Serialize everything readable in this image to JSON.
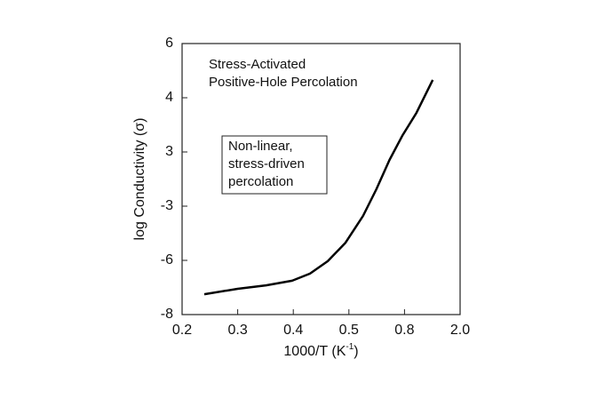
{
  "chart_data": {
    "type": "line",
    "xlabel": "1000/T (K-1)",
    "ylabel": "log Conductivity (σ)",
    "annotations": [
      {
        "lines": [
          "Stress-Activated",
          "Positive-Hole Percolation"
        ],
        "boxed": false
      },
      {
        "lines": [
          "Non-linear,",
          "stress-driven",
          "percolation"
        ],
        "boxed": true
      }
    ],
    "xticks": [
      0.2,
      0.3,
      0.4,
      0.5,
      {
        "value": 0.8,
        "label": "0.8"
      },
      {
        "value": 2.0,
        "label": "2.0"
      }
    ],
    "yticks": [
      -8,
      -6,
      -3,
      3,
      4,
      6
    ],
    "xlim": [
      0.2,
      2.0
    ],
    "ylim": [
      -8,
      6
    ],
    "series": [
      {
        "name": "log Conductivity",
        "color": "#000000",
        "x": [
          0.24,
          0.3,
          0.351,
          0.398,
          0.43,
          0.462,
          0.494,
          0.576,
          0.648,
          0.719,
          0.79,
          1.056,
          1.41
        ],
        "values": [
          -7.25,
          -7.05,
          -6.92,
          -6.75,
          -6.49,
          -6.03,
          -5.02,
          -3.54,
          -1.13,
          2.11,
          3.31,
          3.72,
          4.66
        ]
      }
    ]
  }
}
